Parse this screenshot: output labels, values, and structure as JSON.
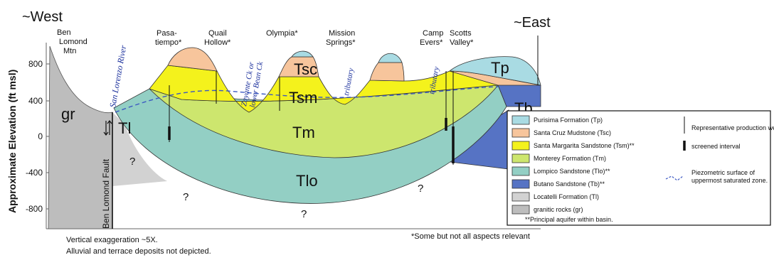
{
  "directions": {
    "west": "~West",
    "east": "~East"
  },
  "y_axis": {
    "label": "Approximate Elevation (ft msl)",
    "ticks": [
      "800",
      "400",
      "0",
      "-400",
      "-800"
    ]
  },
  "places": {
    "ben_lomond": [
      "Ben",
      "Lomond",
      "Mtn"
    ],
    "pasatiempo": [
      "Pasa-",
      "tiempo*"
    ],
    "quail_hollow": [
      "Quail",
      "Hollow*"
    ],
    "olympia": "Olympia*",
    "mission_springs": [
      "Mission",
      "Springs*"
    ],
    "camp_evers": [
      "Camp",
      "Evers*"
    ],
    "scotts_valley": [
      "Scotts",
      "Valley*"
    ]
  },
  "rivers": {
    "san_lorenzo": "San Lorenzo River",
    "zayante": [
      "Zayante Ck or",
      "lower Bean Ck"
    ],
    "tributary": "tributary"
  },
  "fault": "Ben Lomond Fault",
  "units": {
    "gr": "gr",
    "tl": "Tl",
    "tsc": "Tsc",
    "tsm": "Tsm",
    "tm": "Tm",
    "tlo": "Tlo",
    "tp": "Tp",
    "tb": "Tb"
  },
  "unknown": "?",
  "colors": {
    "purisima": "#a9dbe3",
    "santa_cruz": "#f7c59c",
    "santa_margarita": "#f4f21c",
    "monterey": "#cde66e",
    "lompico": "#93cfc4",
    "butano": "#5673c4",
    "locatelli": "#d2d2d2",
    "granitic": "#bdbdbd",
    "piezometric": "#3b58c2"
  },
  "legend": {
    "items": [
      {
        "label": "Purisima Formation (Tp)",
        "color": "#a9dbe3"
      },
      {
        "label": "Santa Cruz Mudstone (Tsc)",
        "color": "#f7c59c"
      },
      {
        "label": "Santa Margarita Sandstone (Tsm)**",
        "color": "#f4f21c"
      },
      {
        "label": "Monterey Formation (Tm)",
        "color": "#cde66e"
      },
      {
        "label": "Lompico Sandstone (Tlo)**",
        "color": "#93cfc4"
      },
      {
        "label": "Butano Sandstone (Tb)**",
        "color": "#5673c4"
      },
      {
        "label": "Locatelli Formation (Tl)",
        "color": "#d2d2d2"
      },
      {
        "label": "granitic rocks (gr)",
        "color": "#bdbdbd"
      }
    ],
    "footnote": "**Principal aquifer within basin.",
    "well": "Representative production well",
    "screened": "screened interval",
    "piezometric": [
      "Piezometric surface of",
      "uppermost saturated zone."
    ]
  },
  "notes": {
    "relevance": "*Some but not all aspects relevant",
    "exaggeration": "Vertical exaggeration ~5X.",
    "alluvial": "Alluvial and terrace deposits not depicted."
  }
}
